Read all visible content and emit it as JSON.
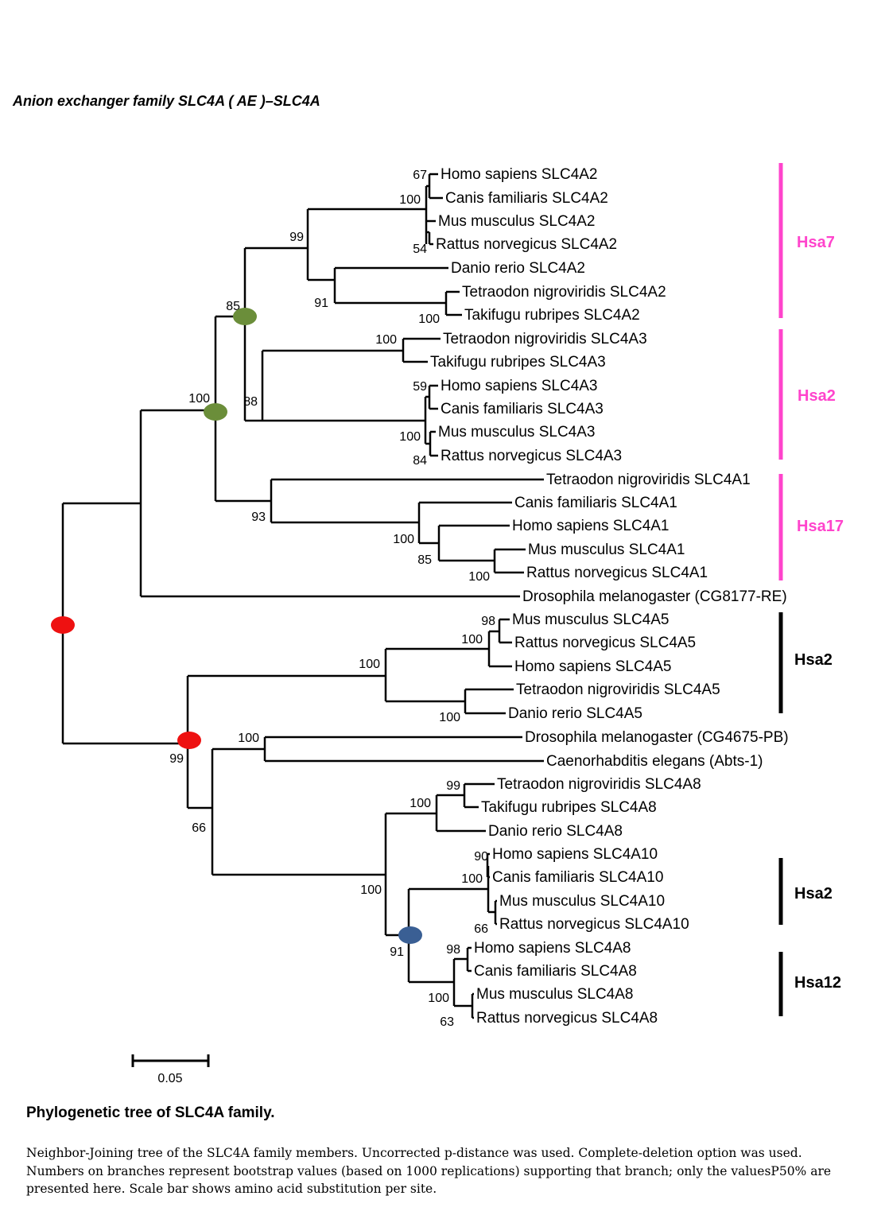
{
  "heading": "Anion exchanger family SLC4A ( AE )–SLC4A",
  "leaves": [
    "Homo sapiens SLC4A2",
    "Canis familiaris SLC4A2",
    "Mus musculus SLC4A2",
    "Rattus norvegicus SLC4A2",
    "Danio rerio SLC4A2",
    "Tetraodon nigroviridis SLC4A2",
    "Takifugu rubripes SLC4A2",
    "Tetraodon nigroviridis SLC4A3",
    "Takifugu rubripes SLC4A3",
    "Homo sapiens SLC4A3",
    "Canis familiaris SLC4A3",
    "Mus musculus SLC4A3",
    "Rattus norvegicus SLC4A3",
    "Tetraodon nigroviridis SLC4A1",
    "Canis familiaris SLC4A1",
    "Homo sapiens SLC4A1",
    "Mus musculus SLC4A1",
    "Rattus norvegicus SLC4A1",
    "Drosophila melanogaster (CG8177-RE)",
    "Mus musculus SLC4A5",
    "Rattus norvegicus SLC4A5",
    "Homo sapiens SLC4A5",
    "Tetraodon nigroviridis SLC4A5",
    "Danio rerio SLC4A5",
    "Drosophila melanogaster (CG4675-PB)",
    "Caenorhabditis elegans  (Abts-1)",
    "Tetraodon nigroviridis SLC4A8",
    "Takifugu rubripes SLC4A8",
    "Danio rerio SLC4A8",
    "Homo sapiens SLC4A10",
    "Canis familiaris SLC4A10",
    "Mus musculus SLC4A10",
    "Rattus norvegicus SLC4A10",
    "Homo sapiens SLC4A8",
    "Canis familiaris SLC4A8",
    "Mus musculus SLC4A8",
    "Rattus norvegicus SLC4A8"
  ],
  "bootstrap": [
    "67",
    "100",
    "54",
    "99",
    "91",
    "100",
    "85",
    "100",
    "100",
    "88",
    "59",
    "100",
    "84",
    "93",
    "100",
    "85",
    "100",
    "98",
    "100",
    "100",
    "100",
    "100",
    "99",
    "66",
    "99",
    "100",
    "100",
    "90",
    "100",
    "66",
    "91",
    "98",
    "100",
    "63"
  ],
  "groups": [
    {
      "label": "Hsa7",
      "color": "#ff44cc"
    },
    {
      "label": "Hsa2",
      "color": "#ff44cc"
    },
    {
      "label": "Hsa17",
      "color": "#ff44cc"
    },
    {
      "label": "Hsa2",
      "color": "#000000"
    },
    {
      "label": "Hsa2",
      "color": "#000000"
    },
    {
      "label": "Hsa12",
      "color": "#000000"
    }
  ],
  "node_marker_colors": {
    "root": "#ee1111",
    "green": "#6b8e3a",
    "blue": "#3a5f94"
  },
  "scale_bar": "0.05",
  "caption": {
    "title": "Phylogenetic tree of SLC4A family.",
    "text": "Neighbor-Joining tree of the SLC4A family members. Uncorrected p-distance was used. Complete-deletion option was used. Numbers on branches represent bootstrap values (based on 1000 replications) supporting that branch; only the valuesP50% are presented here. Scale bar shows amino acid substitution per site."
  }
}
